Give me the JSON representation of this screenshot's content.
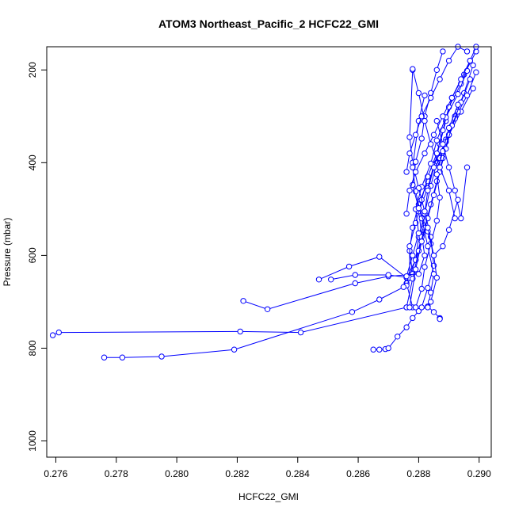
{
  "chart_data": {
    "type": "line",
    "title": "ATOM3 Northeast_Pacific_2 HCFC22_GMI",
    "xlabel": "HCFC22_GMI",
    "ylabel": "Pressure (mbar)",
    "xlim": [
      0.2757,
      0.2904
    ],
    "ylim": [
      1035,
      150
    ],
    "y_reversed": true,
    "x_ticks": [
      0.276,
      0.278,
      0.28,
      0.282,
      0.284,
      0.286,
      0.288,
      0.29
    ],
    "x_tick_labels": [
      "0.276",
      "0.278",
      "0.280",
      "0.282",
      "0.284",
      "0.286",
      "0.288",
      "0.290"
    ],
    "y_ticks": [
      200,
      400,
      600,
      800,
      1000
    ],
    "y_tick_labels": [
      "200",
      "400",
      "600",
      "800",
      "1000"
    ],
    "grid": false,
    "series_color": "#0000ff",
    "marker": "open-circle",
    "series": [
      {
        "x": [
          0.2865,
          0.2867,
          0.2869,
          0.287,
          0.2873,
          0.2876,
          0.2878,
          0.288,
          0.2883,
          0.2885,
          0.2887,
          0.2887
        ],
        "y": [
          803,
          803,
          802,
          800,
          775,
          755,
          735,
          720,
          710,
          722,
          735,
          737
        ]
      },
      {
        "x": [
          0.2759,
          0.2761,
          0.2821,
          0.2841,
          0.2876,
          0.2878,
          0.2876,
          0.2879,
          0.288,
          0.2882,
          0.2884,
          0.2886,
          0.2889,
          0.2892,
          0.2895,
          0.2898
        ],
        "y": [
          772,
          766,
          764,
          766,
          712,
          712,
          660,
          610,
          560,
          510,
          450,
          400,
          350,
          300,
          250,
          190
        ]
      },
      {
        "x": [
          0.2776,
          0.2782,
          0.2795,
          0.2819,
          0.2858,
          0.2867,
          0.2876,
          0.2878,
          0.2877,
          0.2878,
          0.288,
          0.2883,
          0.2887,
          0.289,
          0.2894,
          0.2898
        ],
        "y": [
          820,
          820,
          818,
          803,
          722,
          695,
          665,
          640,
          590,
          540,
          490,
          440,
          390,
          340,
          290,
          240
        ]
      },
      {
        "x": [
          0.2822,
          0.283,
          0.2859,
          0.287,
          0.288,
          0.2882,
          0.2881,
          0.288,
          0.2883,
          0.2885,
          0.2889,
          0.2892,
          0.2896,
          0.2899
        ],
        "y": [
          698,
          716,
          660,
          645,
          640,
          600,
          555,
          505,
          455,
          405,
          355,
          305,
          255,
          205
        ]
      },
      {
        "x": [
          0.2847,
          0.2857,
          0.2867,
          0.2876,
          0.2879,
          0.2881,
          0.2882,
          0.2883,
          0.2885,
          0.2887,
          0.2889,
          0.2891,
          0.2895,
          0.2899
        ],
        "y": [
          652,
          624,
          603,
          648,
          610,
          560,
          510,
          460,
          410,
          360,
          310,
          260,
          210,
          160
        ]
      },
      {
        "x": [
          0.2851,
          0.2859,
          0.287,
          0.2877,
          0.2877,
          0.2879,
          0.2881,
          0.2883,
          0.2886,
          0.2888,
          0.289,
          0.2894,
          0.2897
        ],
        "y": [
          652,
          642,
          642,
          648,
          580,
          530,
          480,
          430,
          380,
          330,
          280,
          230,
          180
        ]
      },
      {
        "x": [
          0.2875,
          0.2876,
          0.2878,
          0.288,
          0.2879,
          0.2881,
          0.2884,
          0.2886,
          0.2889,
          0.2893,
          0.2896
        ],
        "y": [
          668,
          645,
          600,
          552,
          500,
          452,
          402,
          352,
          302,
          252,
          202
        ]
      },
      {
        "x": [
          0.2876,
          0.2878,
          0.288,
          0.2882,
          0.2884,
          0.2886,
          0.2888,
          0.289,
          0.2893
        ],
        "y": [
          712,
          650,
          590,
          540,
          490,
          440,
          390,
          340,
          290
        ]
      },
      {
        "x": [
          0.2877,
          0.2879,
          0.2881,
          0.2883,
          0.2885,
          0.2887,
          0.2889,
          0.2891,
          0.2894,
          0.2897
        ],
        "y": [
          712,
          630,
          570,
          520,
          470,
          420,
          370,
          320,
          270,
          220
        ]
      },
      {
        "x": [
          0.2879,
          0.2881,
          0.2882,
          0.2884,
          0.2886,
          0.2887,
          0.2886,
          0.2888,
          0.289,
          0.2893
        ],
        "y": [
          712,
          672,
          625,
          575,
          525,
          475,
          425,
          375,
          325,
          275
        ]
      },
      {
        "x": [
          0.2881,
          0.2883,
          0.2885,
          0.2884,
          0.2882,
          0.288,
          0.2878,
          0.2877,
          0.2878
        ],
        "y": [
          712,
          670,
          622,
          560,
          505,
          455,
          400,
          345,
          200
        ]
      },
      {
        "x": [
          0.2883,
          0.2884,
          0.2885,
          0.2883,
          0.2881,
          0.2879,
          0.2878,
          0.288,
          0.2882
        ],
        "y": [
          712,
          680,
          640,
          580,
          520,
          462,
          410,
          310,
          255
        ]
      },
      {
        "x": [
          0.2884,
          0.2886,
          0.2885,
          0.2883,
          0.288,
          0.2878,
          0.2879,
          0.2881,
          0.2882,
          0.2884,
          0.2886,
          0.2888
        ],
        "y": [
          700,
          648,
          600,
          548,
          498,
          448,
          398,
          348,
          300,
          250,
          200,
          160
        ]
      },
      {
        "x": [
          0.2876,
          0.2877,
          0.2879,
          0.2882,
          0.2885,
          0.2888,
          0.2891,
          0.2894,
          0.2897,
          0.2899
        ],
        "y": [
          510,
          460,
          420,
          380,
          340,
          300,
          260,
          220,
          180,
          150
        ]
      },
      {
        "x": [
          0.2876,
          0.2877,
          0.2879,
          0.2881,
          0.2884,
          0.2887,
          0.289,
          0.2893,
          0.2896
        ],
        "y": [
          420,
          380,
          340,
          300,
          260,
          220,
          180,
          150,
          160
        ]
      },
      {
        "x": [
          0.2878,
          0.288,
          0.2882,
          0.2884,
          0.2887,
          0.289,
          0.2892
        ],
        "y": [
          198,
          250,
          310,
          360,
          410,
          460,
          520
        ]
      },
      {
        "x": [
          0.2886,
          0.2888,
          0.289,
          0.2892,
          0.2894,
          0.2896
        ],
        "y": [
          310,
          360,
          410,
          460,
          520,
          410
        ]
      },
      {
        "x": [
          0.2883,
          0.2885,
          0.2888,
          0.289,
          0.2893
        ],
        "y": [
          540,
          600,
          580,
          545,
          480
        ]
      }
    ]
  }
}
